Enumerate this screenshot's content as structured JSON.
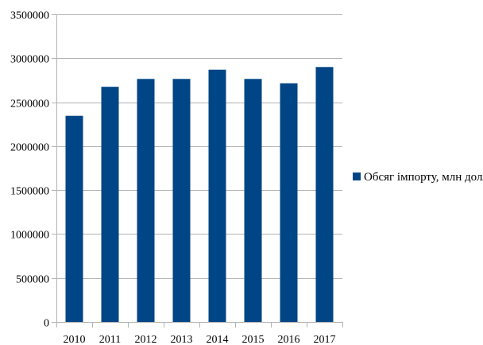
{
  "chart_data": {
    "type": "bar",
    "title": "",
    "xlabel": "",
    "ylabel": "",
    "categories": [
      "2010",
      "2011",
      "2012",
      "2013",
      "2014",
      "2015",
      "2016",
      "2017"
    ],
    "series": [
      {
        "name": "Обсяг імпорту, млн долл",
        "color": "#004586",
        "values": [
          2345000,
          2675000,
          2765000,
          2765000,
          2870000,
          2765000,
          2715000,
          2900000
        ]
      }
    ],
    "ylim": [
      0,
      3500000
    ],
    "yticks": [
      "0",
      "500000",
      "1000000",
      "1500000",
      "2000000",
      "2500000",
      "3000000",
      "3500000"
    ],
    "grid": "horizontal",
    "legend_position": "right"
  }
}
